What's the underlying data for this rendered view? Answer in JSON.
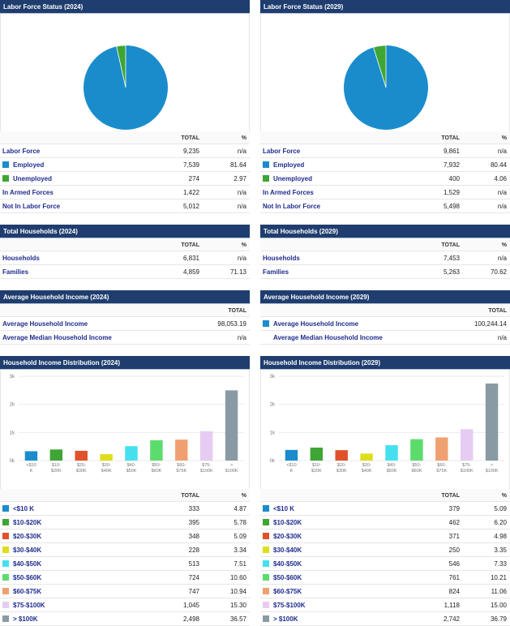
{
  "header_total": "TOTAL",
  "header_pct": "%",
  "sections": [
    {
      "labor_title": "Labor Force Status (2024)",
      "labor_rows": [
        {
          "label": "Labor Force",
          "total": "9,235",
          "pct": "n/a",
          "swatch": ""
        },
        {
          "label": "Employed",
          "total": "7,539",
          "pct": "81.64",
          "swatch": "#1a8ccc"
        },
        {
          "label": "Unemployed",
          "total": "274",
          "pct": "2.97",
          "swatch": "#3fa534"
        },
        {
          "label": "In Armed Forces",
          "total": "1,422",
          "pct": "n/a",
          "swatch": ""
        },
        {
          "label": "Not In Labor Force",
          "total": "5,012",
          "pct": "n/a",
          "swatch": ""
        }
      ],
      "pie": {
        "employed": 7539,
        "unemployed": 274
      },
      "hh_title": "Total Households (2024)",
      "hh_rows": [
        {
          "label": "Households",
          "total": "6,831",
          "pct": "n/a"
        },
        {
          "label": "Families",
          "total": "4,859",
          "pct": "71.13"
        }
      ],
      "inc_title": "Average Household Income (2024)",
      "inc_rows": [
        {
          "label": "Average Household Income",
          "total": "98,053.19",
          "swatch": ""
        },
        {
          "label": "Average Median Household Income",
          "total": "n/a",
          "swatch": ""
        }
      ],
      "dist_title": "Household Income Distribution (2024)",
      "dist_rows": [
        {
          "label": "<$10 K",
          "total": "333",
          "pct": "4.87"
        },
        {
          "label": "$10-$20K",
          "total": "395",
          "pct": "5.78"
        },
        {
          "label": "$20-$30K",
          "total": "348",
          "pct": "5.09"
        },
        {
          "label": "$30-$40K",
          "total": "228",
          "pct": "3.34"
        },
        {
          "label": "$40-$50K",
          "total": "513",
          "pct": "7.51"
        },
        {
          "label": "$50-$60K",
          "total": "724",
          "pct": "10.60"
        },
        {
          "label": "$60-$75K",
          "total": "747",
          "pct": "10.94"
        },
        {
          "label": "$75-$100K",
          "total": "1,045",
          "pct": "15.30"
        },
        {
          "label": "> $100K",
          "total": "2,498",
          "pct": "36.57"
        }
      ]
    },
    {
      "labor_title": "Labor Force Status (2029)",
      "labor_rows": [
        {
          "label": "Labor Force",
          "total": "9,861",
          "pct": "n/a",
          "swatch": ""
        },
        {
          "label": "Employed",
          "total": "7,932",
          "pct": "80.44",
          "swatch": "#1a8ccc"
        },
        {
          "label": "Unemployed",
          "total": "400",
          "pct": "4.06",
          "swatch": "#3fa534"
        },
        {
          "label": "In Armed Forces",
          "total": "1,529",
          "pct": "n/a",
          "swatch": ""
        },
        {
          "label": "Not In Labor Force",
          "total": "5,498",
          "pct": "n/a",
          "swatch": ""
        }
      ],
      "pie": {
        "employed": 7932,
        "unemployed": 400
      },
      "hh_title": "Total Households (2029)",
      "hh_rows": [
        {
          "label": "Households",
          "total": "7,453",
          "pct": "n/a"
        },
        {
          "label": "Families",
          "total": "5,263",
          "pct": "70.62"
        }
      ],
      "inc_title": "Average Household Income (2029)",
      "inc_rows": [
        {
          "label": "Average Household Income",
          "total": "100,244.14",
          "swatch": "#1a8ccc"
        },
        {
          "label": "Average Median Household Income",
          "total": "n/a",
          "swatch": ""
        }
      ],
      "dist_title": "Household Income Distribution (2029)",
      "dist_rows": [
        {
          "label": "<$10 K",
          "total": "379",
          "pct": "5.09"
        },
        {
          "label": "$10-$20K",
          "total": "462",
          "pct": "6.20"
        },
        {
          "label": "$20-$30K",
          "total": "371",
          "pct": "4.98"
        },
        {
          "label": "$30-$40K",
          "total": "250",
          "pct": "3.35"
        },
        {
          "label": "$40-$50K",
          "total": "546",
          "pct": "7.33"
        },
        {
          "label": "$50-$60K",
          "total": "761",
          "pct": "10.21"
        },
        {
          "label": "$60-$75K",
          "total": "824",
          "pct": "11.06"
        },
        {
          "label": "$75-$100K",
          "total": "1,118",
          "pct": "15.00"
        },
        {
          "label": "> $100K",
          "total": "2,742",
          "pct": "36.79"
        }
      ]
    }
  ],
  "bar_colors": [
    "#1a8ccc",
    "#3fa534",
    "#e0522a",
    "#dede1c",
    "#44e0f0",
    "#5cdc6c",
    "#f0a070",
    "#e6ccf2",
    "#8a9aa4"
  ],
  "chart_data": [
    {
      "type": "bar",
      "title": "Household Income Distribution (2024)",
      "categories": [
        "<$10 K",
        "$10-$20K",
        "$20-$30K",
        "$30-$40K",
        "$40-$50K",
        "$50-$60K",
        "$60-$75K",
        "$75-$100K",
        "> $100K"
      ],
      "values": [
        333,
        395,
        348,
        228,
        513,
        724,
        747,
        1045,
        2498
      ],
      "ylim": [
        0,
        3000
      ],
      "yticks": [
        "0k",
        "1k",
        "2k",
        "3k"
      ]
    },
    {
      "type": "bar",
      "title": "Household Income Distribution (2029)",
      "categories": [
        "<$10 K",
        "$10-$20K",
        "$20-$30K",
        "$30-$40K",
        "$40-$50K",
        "$50-$60K",
        "$60-$75K",
        "$75-$100K",
        "> $100K"
      ],
      "values": [
        379,
        462,
        371,
        250,
        546,
        761,
        824,
        1118,
        2742
      ],
      "ylim": [
        0,
        3000
      ],
      "yticks": [
        "0k",
        "1k",
        "2k",
        "3k"
      ]
    }
  ]
}
